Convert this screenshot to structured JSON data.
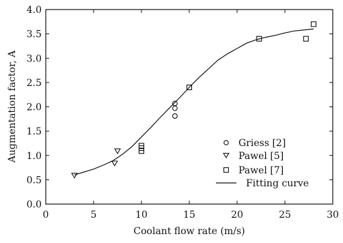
{
  "chart_data": {
    "type": "scatter",
    "title": "",
    "xlabel": "Coolant flow rate (m/s)",
    "ylabel": "Augmentation factor, A",
    "xlim": [
      0,
      30
    ],
    "ylim": [
      0.0,
      4.0
    ],
    "xticks": [
      0,
      5,
      10,
      15,
      20,
      25,
      30
    ],
    "yticks": [
      0.0,
      0.5,
      1.0,
      1.5,
      2.0,
      2.5,
      3.0,
      3.5,
      4.0
    ],
    "xtick_labels": [
      "0",
      "5",
      "10",
      "15",
      "20",
      "25",
      "30"
    ],
    "ytick_labels": [
      "0.0",
      "0.5",
      "1.0",
      "1.5",
      "2.0",
      "2.5",
      "3.0",
      "3.5",
      "4.0"
    ],
    "grid": false,
    "legend_position": "bottom-right",
    "series": [
      {
        "name": "Griess [2]",
        "marker": "circle",
        "x": [
          13.5,
          13.5,
          13.5
        ],
        "y": [
          2.07,
          1.97,
          1.81
        ]
      },
      {
        "name": "Pawel [5]",
        "marker": "triangle-down",
        "x": [
          3.0,
          7.2,
          7.5
        ],
        "y": [
          0.59,
          0.84,
          1.09
        ]
      },
      {
        "name": "Pawel [7]",
        "marker": "square",
        "x": [
          10.0,
          10.0,
          10.0,
          15.0,
          22.3,
          27.2,
          28.0
        ],
        "y": [
          1.09,
          1.15,
          1.2,
          2.4,
          3.4,
          3.4,
          3.7
        ]
      },
      {
        "name": "Fitting curve",
        "marker": "line",
        "x": [
          3.0,
          4.0,
          5.0,
          6.0,
          7.0,
          8.0,
          9.0,
          10.0,
          11.0,
          12.0,
          13.0,
          14.0,
          15.0,
          16.0,
          17.0,
          18.0,
          19.0,
          20.0,
          21.0,
          22.0,
          23.0,
          24.0,
          25.0,
          26.0,
          27.0,
          28.0
        ],
        "y": [
          0.6,
          0.66,
          0.72,
          0.8,
          0.89,
          1.02,
          1.18,
          1.38,
          1.58,
          1.79,
          1.99,
          2.19,
          2.4,
          2.6,
          2.78,
          2.96,
          3.09,
          3.2,
          3.31,
          3.38,
          3.43,
          3.47,
          3.52,
          3.56,
          3.58,
          3.6
        ]
      }
    ]
  }
}
